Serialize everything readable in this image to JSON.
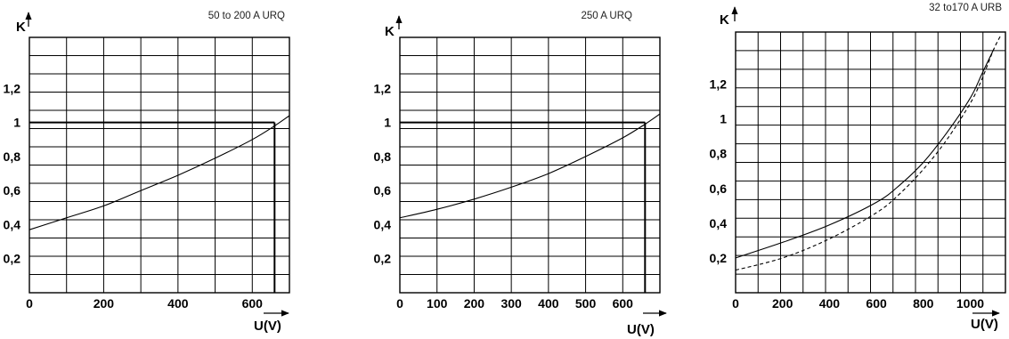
{
  "chart_data": [
    {
      "type": "line",
      "title": "50 to 200 A URQ",
      "xlabel": "U(V)",
      "ylabel": "K",
      "xlim": [
        0,
        700
      ],
      "ylim": [
        0,
        1.5
      ],
      "x_ticks": [
        0,
        200,
        400,
        600
      ],
      "x_tick_labels": [
        "0",
        "200",
        "400",
        "600"
      ],
      "y_ticks": [
        0.2,
        0.4,
        0.6,
        0.8,
        1,
        1.2
      ],
      "y_tick_labels": [
        "0,2",
        "0,4",
        "0,6",
        "0,8",
        "1",
        "1,2"
      ],
      "grid": true,
      "series": [
        {
          "style": "solid",
          "x": [
            0,
            100,
            200,
            300,
            400,
            500,
            600,
            660,
            700
          ],
          "y": [
            0.37,
            0.44,
            0.51,
            0.6,
            0.69,
            0.79,
            0.9,
            0.98,
            1.04
          ]
        }
      ],
      "annotations": [
        {
          "type": "reference_lines",
          "x": 660,
          "y": 1
        }
      ]
    },
    {
      "type": "line",
      "title": "250 A URQ",
      "xlabel": "U(V)",
      "ylabel": "K",
      "xlim": [
        0,
        700
      ],
      "ylim": [
        0,
        1.5
      ],
      "x_ticks": [
        0,
        100,
        200,
        300,
        400,
        500,
        600
      ],
      "x_tick_labels": [
        "0",
        "100",
        "200",
        "300",
        "400",
        "500",
        "600"
      ],
      "y_ticks": [
        0.2,
        0.4,
        0.6,
        0.8,
        1,
        1.2
      ],
      "y_tick_labels": [
        "0,2",
        "0,4",
        "0,6",
        "0,8",
        "1",
        "1,2"
      ],
      "grid": true,
      "series": [
        {
          "style": "solid",
          "x": [
            0,
            100,
            200,
            300,
            400,
            500,
            600,
            660,
            700
          ],
          "y": [
            0.44,
            0.49,
            0.55,
            0.62,
            0.7,
            0.8,
            0.91,
            0.99,
            1.05
          ]
        }
      ],
      "annotations": [
        {
          "type": "reference_lines",
          "x": 660,
          "y": 1
        }
      ]
    },
    {
      "type": "line",
      "title": "32 to170 A URB",
      "xlabel": "U(V)",
      "ylabel": "K",
      "xlim": [
        0,
        1150
      ],
      "ylim": [
        0,
        1.5
      ],
      "x_ticks": [
        0,
        200,
        400,
        600,
        800,
        1000
      ],
      "x_tick_labels": [
        "0",
        "200",
        "400",
        "600",
        "800",
        "1000"
      ],
      "y_ticks": [
        0.2,
        0.4,
        0.6,
        0.8,
        1,
        1.2
      ],
      "y_tick_labels": [
        "0,2",
        "0,4",
        "0,6",
        "0,8",
        "1",
        "1,2"
      ],
      "grid": true,
      "series": [
        {
          "style": "solid",
          "x": [
            0,
            200,
            400,
            600,
            700,
            800,
            900,
            1000,
            1050,
            1100
          ],
          "y": [
            0.2,
            0.29,
            0.39,
            0.52,
            0.62,
            0.75,
            0.92,
            1.12,
            1.26,
            1.4
          ]
        },
        {
          "style": "dashed",
          "x": [
            0,
            200,
            400,
            600,
            700,
            800,
            900,
            1000,
            1050,
            1100,
            1130
          ],
          "y": [
            0.13,
            0.2,
            0.31,
            0.46,
            0.57,
            0.71,
            0.88,
            1.09,
            1.23,
            1.4,
            1.48
          ]
        }
      ]
    }
  ]
}
